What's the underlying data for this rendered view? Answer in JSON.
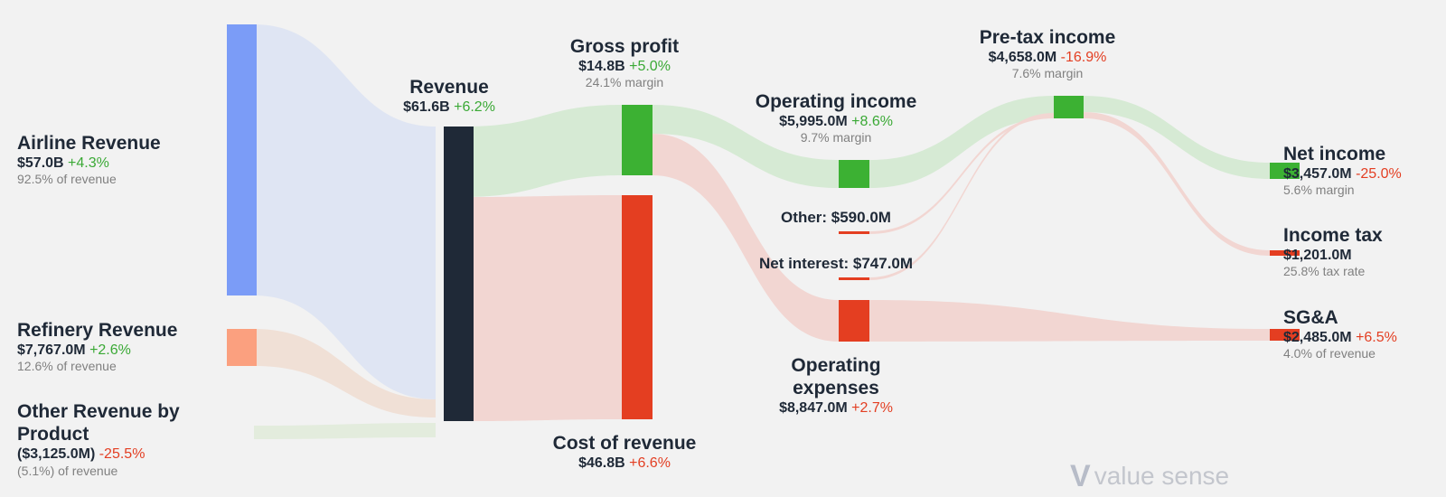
{
  "chart_data": {
    "type": "sankey",
    "units": "USD",
    "colors": {
      "source": "#7b9cf7",
      "refinery": "#fba07f",
      "hub": "#1f2937",
      "profit": "#3cb133",
      "expense": "#e43e21",
      "flow_source": "#dfe5f3",
      "flow_profit": "#d6ead4",
      "flow_expense": "#f2d6d2",
      "flow_refinery": "#f0e0d6",
      "flow_other": "#e3ecdd"
    },
    "nodes": {
      "airline": {
        "name": "Airline Revenue",
        "value": "$57.0B",
        "change": "+4.3%",
        "trend": "up",
        "note": "92.5% of revenue"
      },
      "refinery": {
        "name": "Refinery Revenue",
        "value": "$7,767.0M",
        "change": "+2.6%",
        "trend": "up",
        "note": "12.6% of revenue"
      },
      "other_rev": {
        "name": "Other Revenue by Product",
        "value": "($3,125.0M)",
        "change": "-25.5%",
        "trend": "down",
        "note": "(5.1%) of revenue"
      },
      "revenue": {
        "name": "Revenue",
        "value": "$61.6B",
        "change": "+6.2%",
        "trend": "up"
      },
      "gross_profit": {
        "name": "Gross profit",
        "value": "$14.8B",
        "change": "+5.0%",
        "trend": "up",
        "note": "24.1% margin"
      },
      "cost_of_revenue": {
        "name": "Cost of revenue",
        "value": "$46.8B",
        "change": "+6.6%",
        "trend": "down"
      },
      "operating_income": {
        "name": "Operating income",
        "value": "$5,995.0M",
        "change": "+8.6%",
        "trend": "up",
        "note": "9.7% margin"
      },
      "other": {
        "label": "Other: $590.0M"
      },
      "net_interest": {
        "label": "Net interest: $747.0M"
      },
      "operating_expenses": {
        "name": "Operating expenses",
        "value": "$8,847.0M",
        "change": "+2.7%",
        "trend": "down"
      },
      "pretax_income": {
        "name": "Pre-tax income",
        "value": "$4,658.0M",
        "change": "-16.9%",
        "trend": "down",
        "note": "7.6% margin"
      },
      "net_income": {
        "name": "Net income",
        "value": "$3,457.0M",
        "change": "-25.0%",
        "trend": "down",
        "note": "5.6% margin"
      },
      "income_tax": {
        "name": "Income tax",
        "value": "$1,201.0M",
        "note": "25.8% tax rate"
      },
      "sga": {
        "name": "SG&A",
        "value": "$2,485.0M",
        "change": "+6.5%",
        "trend": "down",
        "note": "4.0% of revenue"
      }
    },
    "links": [
      {
        "from": "Airline Revenue",
        "to": "Revenue",
        "value": 57.0
      },
      {
        "from": "Refinery Revenue",
        "to": "Revenue",
        "value": 7.767
      },
      {
        "from": "Other Revenue by Product",
        "to": "Revenue",
        "value": -3.125
      },
      {
        "from": "Revenue",
        "to": "Gross profit",
        "value": 14.8
      },
      {
        "from": "Revenue",
        "to": "Cost of revenue",
        "value": 46.8
      },
      {
        "from": "Gross profit",
        "to": "Operating income",
        "value": 5.995
      },
      {
        "from": "Gross profit",
        "to": "Operating expenses",
        "value": 8.847
      },
      {
        "from": "Operating income",
        "to": "Pre-tax income",
        "value": 5.995
      },
      {
        "from": "Other",
        "to": "Pre-tax income",
        "value": -0.59
      },
      {
        "from": "Net interest",
        "to": "Pre-tax income",
        "value": -0.747
      },
      {
        "from": "Pre-tax income",
        "to": "Net income",
        "value": 3.457
      },
      {
        "from": "Pre-tax income",
        "to": "Income tax",
        "value": 1.201
      },
      {
        "from": "Operating expenses",
        "to": "SG&A",
        "value": 2.485
      }
    ]
  },
  "watermark": {
    "text": "value sense",
    "icon": "v-logo-icon"
  }
}
